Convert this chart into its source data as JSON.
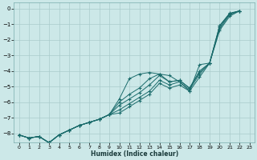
{
  "xlabel": "Humidex (Indice chaleur)",
  "bg_color": "#cce8e8",
  "grid_color": "#aacccc",
  "line_color": "#1a6b6b",
  "xlim": [
    -0.5,
    23.5
  ],
  "ylim": [
    -8.6,
    0.4
  ],
  "xticks": [
    0,
    1,
    2,
    3,
    4,
    5,
    6,
    7,
    8,
    9,
    10,
    11,
    12,
    13,
    14,
    15,
    16,
    17,
    18,
    19,
    20,
    21,
    22,
    23
  ],
  "yticks": [
    0,
    -1,
    -2,
    -3,
    -4,
    -5,
    -6,
    -7,
    -8
  ],
  "x": [
    0,
    1,
    2,
    3,
    4,
    5,
    6,
    7,
    8,
    9,
    10,
    11,
    12,
    13,
    14,
    15,
    16,
    17,
    18,
    19,
    20,
    21,
    22
  ],
  "series": [
    [
      -8.1,
      -8.3,
      -8.2,
      -8.6,
      -8.1,
      -7.8,
      -7.5,
      -7.3,
      -7.1,
      -6.8,
      -5.8,
      -4.5,
      -4.2,
      -4.1,
      -4.2,
      -4.3,
      -4.7,
      -5.3,
      -3.6,
      -3.5,
      -1.1,
      -0.3,
      -0.15
    ],
    [
      -8.1,
      -8.3,
      -8.2,
      -8.6,
      -8.1,
      -7.8,
      -7.5,
      -7.3,
      -7.1,
      -6.8,
      -6.0,
      -5.5,
      -5.1,
      -4.5,
      -4.2,
      -4.7,
      -4.6,
      -5.1,
      -4.0,
      -3.5,
      -1.1,
      -0.35,
      -0.15
    ],
    [
      -8.1,
      -8.3,
      -8.2,
      -8.6,
      -8.1,
      -7.8,
      -7.5,
      -7.3,
      -7.1,
      -6.8,
      -6.2,
      -5.8,
      -5.4,
      -4.9,
      -4.3,
      -4.7,
      -4.6,
      -5.1,
      -4.1,
      -3.5,
      -1.2,
      -0.35,
      -0.15
    ],
    [
      -8.1,
      -8.3,
      -8.2,
      -8.6,
      -8.1,
      -7.8,
      -7.5,
      -7.3,
      -7.1,
      -6.8,
      -6.5,
      -6.1,
      -5.7,
      -5.3,
      -4.6,
      -4.9,
      -4.7,
      -5.2,
      -4.2,
      -3.5,
      -1.3,
      -0.4,
      -0.15
    ],
    [
      -8.1,
      -8.3,
      -8.2,
      -8.6,
      -8.1,
      -7.8,
      -7.5,
      -7.3,
      -7.1,
      -6.8,
      -6.7,
      -6.3,
      -5.9,
      -5.5,
      -4.8,
      -5.1,
      -4.9,
      -5.3,
      -4.4,
      -3.5,
      -1.4,
      -0.5,
      -0.15
    ]
  ]
}
